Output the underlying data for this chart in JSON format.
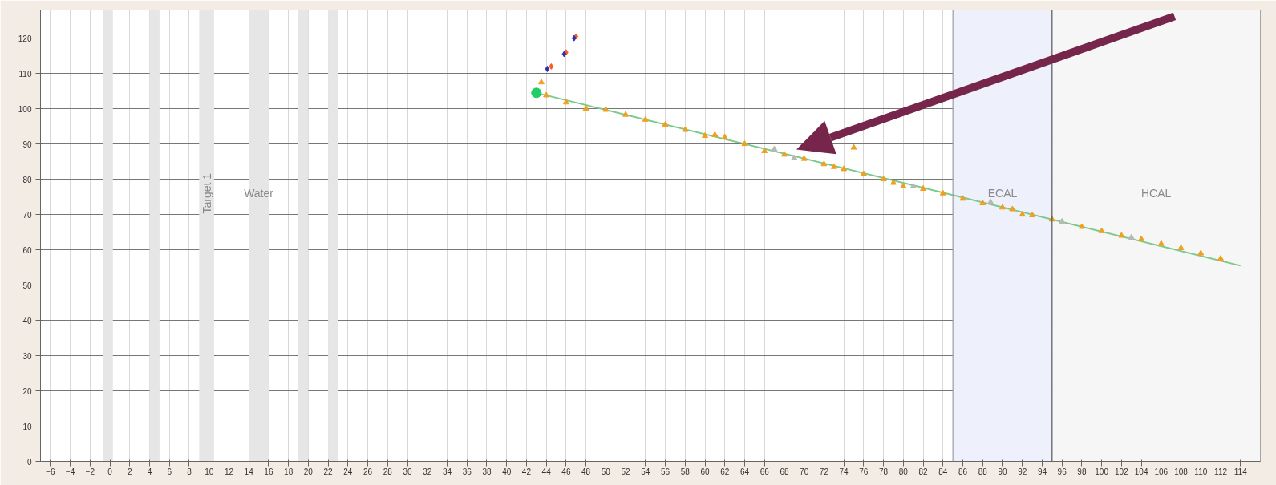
{
  "chart_data": {
    "type": "scatter",
    "xlim": [
      -7,
      116
    ],
    "ylim": [
      0,
      128
    ],
    "xticks": [
      -6,
      -4,
      -2,
      0,
      2,
      4,
      6,
      8,
      10,
      12,
      14,
      16,
      18,
      20,
      22,
      24,
      26,
      28,
      30,
      32,
      34,
      36,
      38,
      40,
      42,
      44,
      46,
      48,
      50,
      52,
      54,
      56,
      58,
      60,
      62,
      64,
      66,
      68,
      70,
      72,
      74,
      76,
      78,
      80,
      82,
      84,
      86,
      88,
      90,
      92,
      94,
      96,
      98,
      100,
      102,
      104,
      106,
      108,
      110,
      112,
      114
    ],
    "yticks": [
      0,
      10,
      20,
      30,
      40,
      50,
      60,
      70,
      80,
      90,
      100,
      110,
      120
    ],
    "grid": true,
    "ref_lines": [
      {
        "axis": "x",
        "value": 85,
        "color": "#9a9aa8"
      },
      {
        "axis": "x",
        "value": 95,
        "color": "#555555"
      }
    ],
    "bands": [
      {
        "axis": "x",
        "from": -0.7,
        "to": 0.3,
        "color": "#e6e6e6"
      },
      {
        "axis": "x",
        "from": 4,
        "to": 5,
        "color": "#e6e6e6"
      },
      {
        "axis": "x",
        "from": 9,
        "to": 10.5,
        "color": "#e6e6e6",
        "label": "Target 1"
      },
      {
        "axis": "x",
        "from": 14,
        "to": 16,
        "color": "#e6e6e6",
        "label": "Water"
      },
      {
        "axis": "x",
        "from": 19,
        "to": 20,
        "color": "#e6e6e6"
      },
      {
        "axis": "x",
        "from": 22,
        "to": 23,
        "color": "#e6e6e6"
      },
      {
        "axis": "x",
        "from": 85,
        "to": 95,
        "color": "#eef0fc",
        "label": "ECAL"
      },
      {
        "axis": "x",
        "from": 95,
        "to": 116,
        "color": "#f6f6f6",
        "label": "HCAL"
      }
    ],
    "series": [
      {
        "type": "line",
        "color": "#7cc98a",
        "x": [
          43,
          114
        ],
        "values": [
          104.5,
          55.5
        ],
        "marker": "none"
      },
      {
        "color": "#f0a020",
        "marker": "triangle",
        "x": [
          43.5,
          44,
          46,
          48,
          50,
          52,
          54,
          56,
          58,
          60,
          61,
          62,
          64,
          66,
          68,
          70,
          72,
          73,
          74,
          75,
          76,
          78,
          79,
          80,
          82,
          84,
          86,
          88,
          90,
          91,
          92,
          93,
          95,
          98,
          100,
          102,
          104,
          106,
          108,
          110,
          112
        ],
        "values": [
          107.5,
          103.8,
          101.8,
          100,
          99.7,
          98.3,
          96.9,
          95.5,
          94,
          92.3,
          92.6,
          91.9,
          90,
          88,
          87,
          85.8,
          84.3,
          83.5,
          82.9,
          89,
          81.5,
          80,
          79,
          78,
          77.3,
          76,
          74.5,
          73.2,
          72,
          71.5,
          70,
          69.8,
          68.6,
          66.5,
          65.3,
          64,
          63,
          61.7,
          60.5,
          59,
          57.5
        ]
      },
      {
        "color": "#b8b8b8",
        "marker": "triangle",
        "x": [
          67,
          69,
          81,
          88.8,
          96,
          103
        ],
        "values": [
          88.5,
          86,
          78,
          73.5,
          68,
          63.5
        ]
      },
      {
        "color": "#ff5a1e",
        "marker": "diamond",
        "x": [
          44.5,
          46,
          47
        ],
        "values": [
          112,
          116,
          120.5
        ]
      },
      {
        "color": "#3030b0",
        "marker": "diamond",
        "x": [
          44.1,
          45.8,
          46.8
        ],
        "values": [
          111.3,
          115.5,
          120
        ]
      },
      {
        "color": "#22cc66",
        "marker": "circle",
        "x": [
          43
        ],
        "values": [
          104.5
        ]
      }
    ]
  }
}
